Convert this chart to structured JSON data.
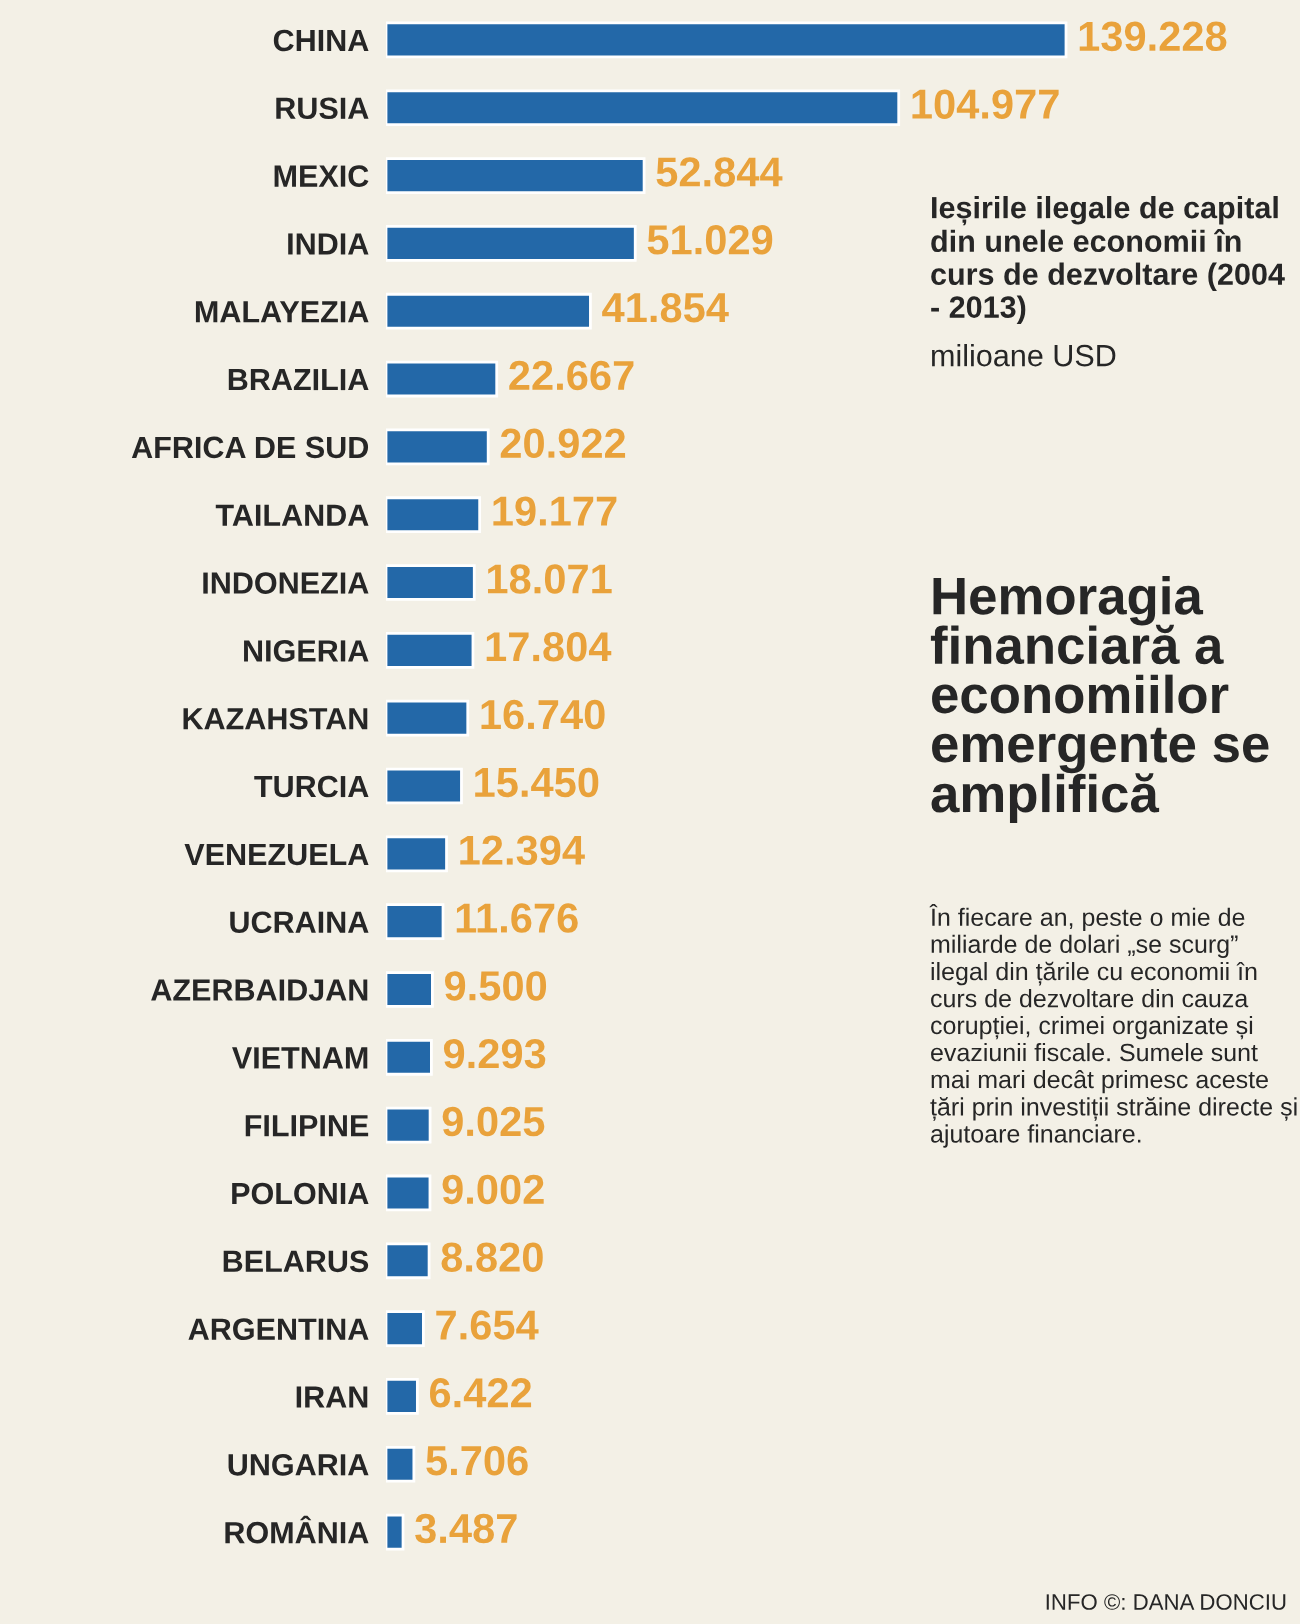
{
  "chart_data": {
    "type": "bar",
    "orientation": "horizontal",
    "title": "Hemoragia financiară a economiilor emergente se amplifică",
    "subtitle": "Ieșirile ilegale de capital din unele economii în curs de dezvoltare (2004 - 2013)",
    "categories": [
      "CHINA",
      "RUSIA",
      "MEXIC",
      "INDIA",
      "MALAYEZIA",
      "BRAZILIA",
      "AFRICA DE SUD",
      "TAILANDA",
      "INDONEZIA",
      "NIGERIA",
      "KAZAHSTAN",
      "TURCIA",
      "VENEZUELA",
      "UCRAINA",
      "AZERBAIDJAN",
      "VIETNAM",
      "FILIPINE",
      "POLONIA",
      "BELARUS",
      "ARGENTINA",
      "IRAN",
      "UNGARIA",
      "ROMÂNIA"
    ],
    "series": [
      {
        "color": "#2368a8",
        "values": [
          139228,
          104977,
          52844,
          51029,
          41854,
          22667,
          20922,
          19177,
          18071,
          17804,
          16740,
          15450,
          12394,
          11676,
          9500,
          9293,
          9025,
          9002,
          8820,
          7654,
          6422,
          5706,
          3487
        ],
        "value_labels": [
          "139.228",
          "104.977",
          "52.844",
          "51.029",
          "41.854",
          "22.667",
          "20.922",
          "19.177",
          "18.071",
          "17.804",
          "16.740",
          "15.450",
          "12.394",
          "11.676",
          "9.500",
          "9.293",
          "9.025",
          "9.002",
          "8.820",
          "7.654",
          "6.422",
          "5.706",
          "3.487"
        ]
      }
    ],
    "annotations": [
      "milioane USD",
      "În fiecare an, peste o mie de miliarde de dolari „se scurg” ilegal din țările cu economii în curs de dezvoltare din cauza corupției, crimei organizate și evaziunii fiscale. Sumele sunt mai mari decât primesc aceste țări prin investiții străine directe și ajutoare financiare.",
      "INFO ©: DANA DONCIU"
    ],
    "legend": false,
    "grid": false
  }
}
